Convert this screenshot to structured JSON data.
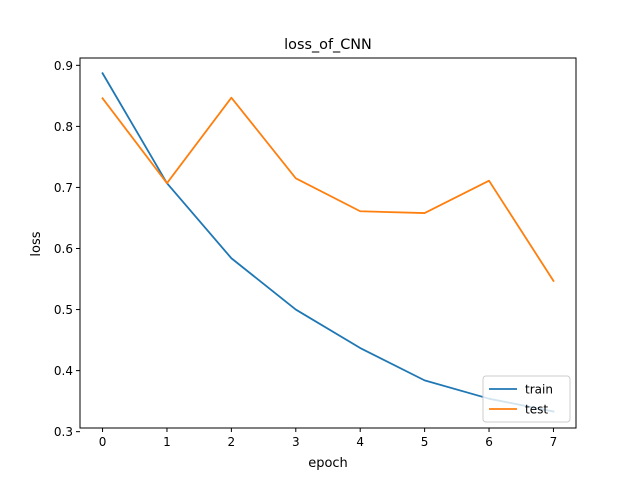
{
  "chart_data": {
    "type": "line",
    "title": "loss_of_CNN",
    "xlabel": "epoch",
    "ylabel": "loss",
    "x": [
      0,
      1,
      2,
      3,
      4,
      5,
      6,
      7
    ],
    "xticks": [
      "0",
      "1",
      "2",
      "3",
      "4",
      "5",
      "6",
      "7"
    ],
    "yticks": [
      "0.3",
      "0.4",
      "0.5",
      "0.6",
      "0.7",
      "0.8",
      "0.9"
    ],
    "xlim": [
      -0.35,
      7.35
    ],
    "ylim": [
      0.306,
      0.912
    ],
    "grid": false,
    "legend_position": "lower right",
    "series": [
      {
        "name": "train",
        "color": "#1f77b4",
        "values": [
          0.887,
          0.707,
          0.584,
          0.5,
          0.437,
          0.384,
          0.354,
          0.333
        ]
      },
      {
        "name": "test",
        "color": "#ff7f0e",
        "values": [
          0.846,
          0.707,
          0.847,
          0.715,
          0.661,
          0.658,
          0.711,
          0.547
        ]
      }
    ]
  }
}
